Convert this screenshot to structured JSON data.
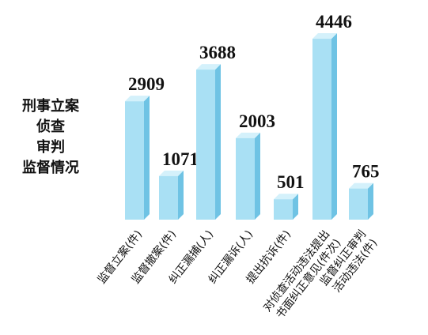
{
  "chart_data": {
    "type": "bar3d",
    "title": "刑事立案\n侦查\n审判\n监督情况",
    "categories": [
      "监督立案(件)",
      "监督撤案(件)",
      "纠正漏捕(人)",
      "纠正漏诉(人)",
      "提出抗诉(件)",
      "对侦查活动违法提出\n书面纠正意见(件次)",
      "监督纠正审判\n活动违法(件)"
    ],
    "values": [
      2909,
      1071,
      3688,
      2003,
      501,
      4446,
      765
    ],
    "color": "#a9e0f4"
  }
}
